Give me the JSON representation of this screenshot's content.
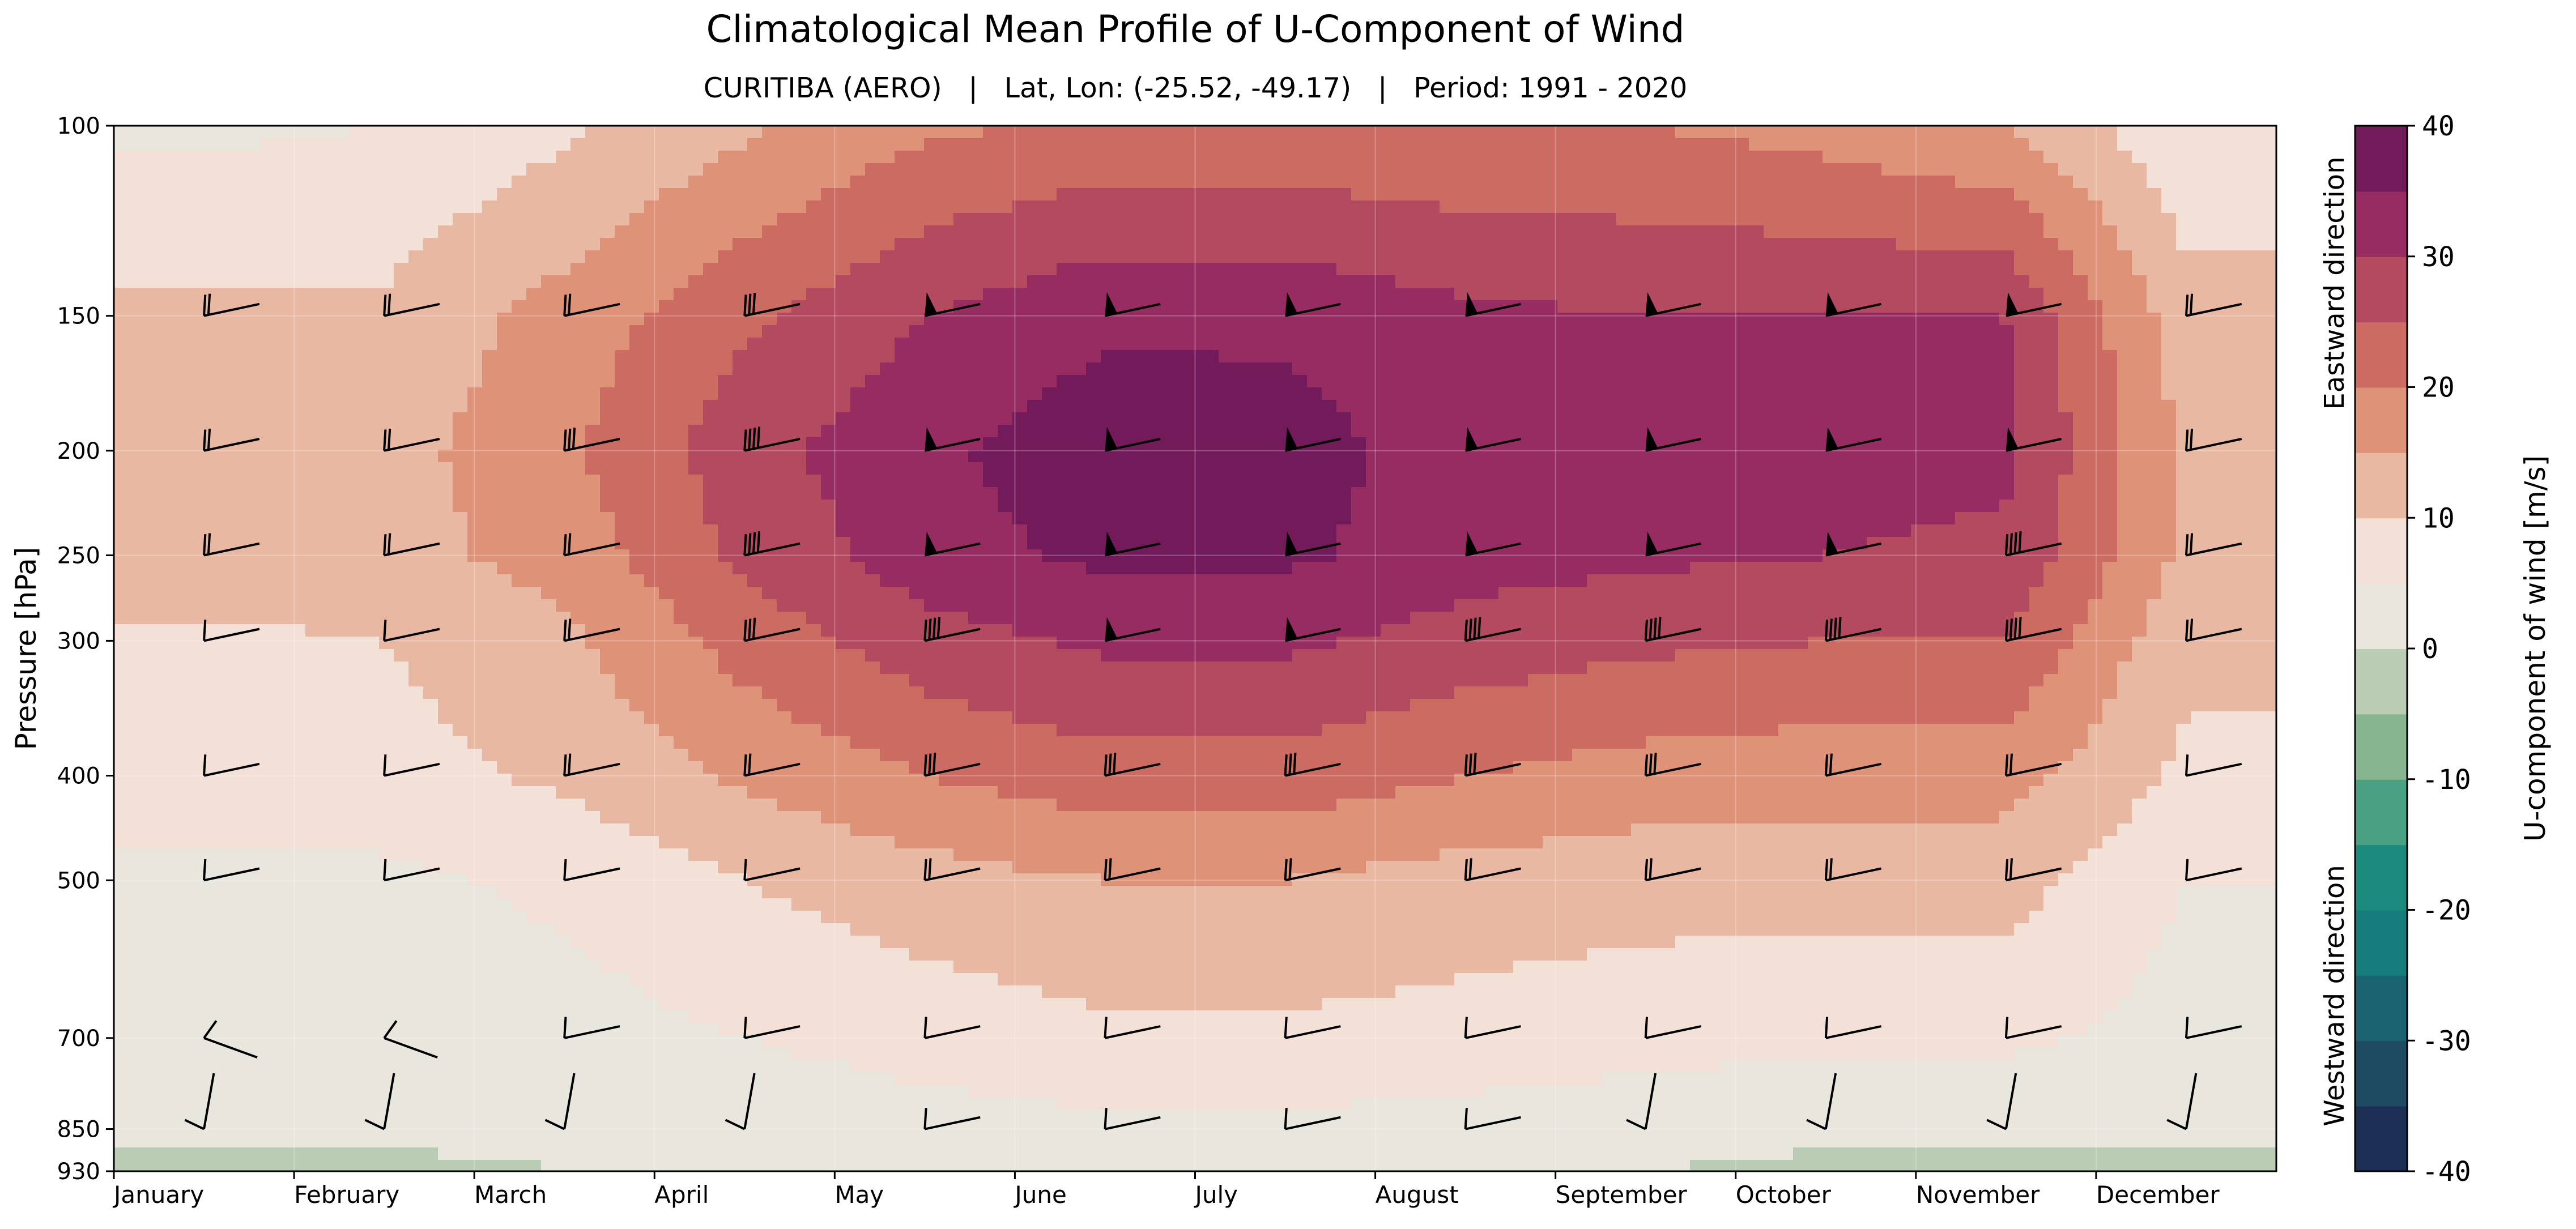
{
  "chart_data": {
    "type": "filled-contour",
    "title": "Climatological Mean Profile of U-Component of Wind",
    "subtitle": "CURITIBA (AERO)   |   Lat, Lon: (-25.52, -49.17)   |   Period: 1991 - 2020",
    "xlabel": "",
    "ylabel": "Pressure [hPa]",
    "x_ticks": [
      "January",
      "February",
      "March",
      "April",
      "May",
      "June",
      "July",
      "August",
      "September",
      "October",
      "November",
      "December"
    ],
    "y_ticks": [
      100,
      150,
      200,
      250,
      300,
      400,
      500,
      700,
      850,
      930
    ],
    "y_scale": "log",
    "y_inverted": true,
    "ylim": [
      930,
      100
    ],
    "grid": true,
    "colorbar": {
      "label": "U-component of wind [m/s]",
      "ticks": [
        40,
        30,
        20,
        10,
        0,
        -10,
        -20,
        -30,
        -40
      ],
      "levels": [
        -40,
        -35,
        -30,
        -25,
        -20,
        -15,
        -10,
        -5,
        0,
        5,
        10,
        15,
        20,
        25,
        30,
        35,
        40
      ],
      "top_annotation": "Eastward direction",
      "bottom_annotation": "Westward direction",
      "colors": [
        "#1c2f55",
        "#1e4a62",
        "#1b6370",
        "#177d7c",
        "#1c8a7d",
        "#4aa083",
        "#86b590",
        "#b8cdb3",
        "#e9e6de",
        "#f3e0d6",
        "#e8b8a2",
        "#de9278",
        "#cc6b62",
        "#b34a60",
        "#962c61",
        "#731a5b",
        "#4a1244"
      ]
    },
    "u_field_m_s": {
      "months": [
        1,
        2,
        3,
        4,
        5,
        6,
        7,
        8,
        9,
        10,
        11,
        12
      ],
      "pressures_hPa": [
        100,
        150,
        200,
        250,
        300,
        400,
        500,
        700,
        850,
        930
      ],
      "values": [
        [
          4,
          5,
          9,
          14,
          19,
          21,
          21,
          20,
          20,
          18,
          15,
          6
        ],
        [
          11,
          11,
          17,
          24,
          30,
          34,
          34,
          31,
          30,
          30,
          30,
          12
        ],
        [
          13,
          13,
          19,
          28,
          34,
          38,
          37,
          33,
          33,
          32,
          31,
          14
        ],
        [
          13,
          13,
          17,
          26,
          33,
          36,
          36,
          32,
          31,
          30,
          29,
          14
        ],
        [
          9,
          10,
          14,
          22,
          28,
          31,
          31,
          28,
          26,
          25,
          25,
          11
        ],
        [
          7,
          8,
          11,
          16,
          20,
          23,
          23,
          20,
          18,
          17,
          17,
          9
        ],
        [
          4,
          4,
          6,
          10,
          13,
          15,
          15,
          13,
          12,
          12,
          12,
          5
        ],
        [
          2,
          2,
          3,
          5,
          7,
          9,
          9,
          8,
          7,
          6,
          6,
          3
        ],
        [
          1,
          1,
          1,
          2,
          3,
          4,
          4,
          3,
          2,
          1,
          1,
          1
        ],
        [
          -1,
          -1,
          0,
          0,
          1,
          2,
          2,
          1,
          0,
          -1,
          -1,
          -1
        ]
      ]
    },
    "wind_barbs": {
      "levels_hPa": [
        150,
        200,
        250,
        300,
        400,
        500,
        700,
        850
      ],
      "columns": 12
    }
  }
}
